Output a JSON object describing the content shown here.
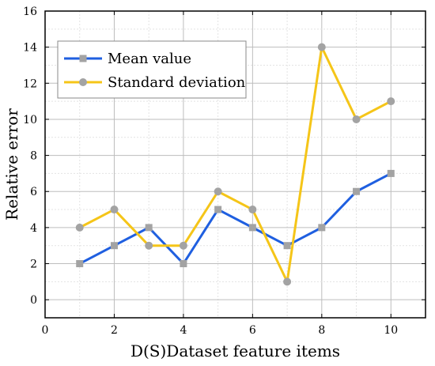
{
  "chart_data": {
    "type": "line",
    "title": "",
    "xlabel": "D(S)Dataset feature items",
    "ylabel": "Relative error",
    "xlim": [
      0,
      11
    ],
    "ylim": [
      -1,
      16
    ],
    "x_ticks": [
      0,
      2,
      4,
      6,
      8,
      10
    ],
    "y_ticks": [
      0,
      2,
      4,
      6,
      8,
      10,
      12,
      14,
      16
    ],
    "grid": true,
    "legend_position": "top-left",
    "x": [
      1,
      2,
      3,
      4,
      5,
      6,
      7,
      8,
      9,
      10
    ],
    "series": [
      {
        "name": "Mean value",
        "color": "#1f5fe0",
        "marker": "square",
        "marker_color": "#a3a3a3",
        "values": [
          2,
          3,
          4,
          2,
          5,
          4,
          3,
          4,
          6,
          7
        ]
      },
      {
        "name": "Standard deviation",
        "color": "#f5c518",
        "marker": "circle",
        "marker_color": "#a3a3a3",
        "values": [
          4,
          5,
          3,
          3,
          6,
          5,
          1,
          14,
          10,
          11
        ]
      }
    ]
  }
}
